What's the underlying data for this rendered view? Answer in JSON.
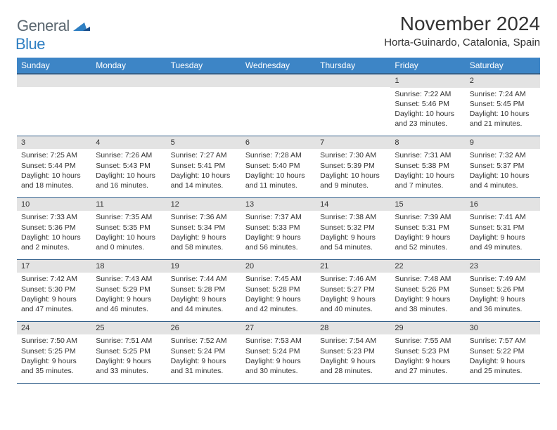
{
  "logo": {
    "general": "General",
    "blue": "Blue"
  },
  "title": {
    "month": "November 2024",
    "location": "Horta-Guinardo, Catalonia, Spain"
  },
  "theme": {
    "header_bg": "#3d85c6",
    "header_border": "#325f8a",
    "daynum_bg": "#e3e3e3",
    "logo_gray": "#5b6770",
    "logo_blue": "#2f7fc2",
    "text": "#333333"
  },
  "weekdays": [
    "Sunday",
    "Monday",
    "Tuesday",
    "Wednesday",
    "Thursday",
    "Friday",
    "Saturday"
  ],
  "weeks": [
    [
      null,
      null,
      null,
      null,
      null,
      {
        "n": "1",
        "sr": "7:22 AM",
        "ss": "5:46 PM",
        "dl": "10 hours and 23 minutes."
      },
      {
        "n": "2",
        "sr": "7:24 AM",
        "ss": "5:45 PM",
        "dl": "10 hours and 21 minutes."
      }
    ],
    [
      {
        "n": "3",
        "sr": "7:25 AM",
        "ss": "5:44 PM",
        "dl": "10 hours and 18 minutes."
      },
      {
        "n": "4",
        "sr": "7:26 AM",
        "ss": "5:43 PM",
        "dl": "10 hours and 16 minutes."
      },
      {
        "n": "5",
        "sr": "7:27 AM",
        "ss": "5:41 PM",
        "dl": "10 hours and 14 minutes."
      },
      {
        "n": "6",
        "sr": "7:28 AM",
        "ss": "5:40 PM",
        "dl": "10 hours and 11 minutes."
      },
      {
        "n": "7",
        "sr": "7:30 AM",
        "ss": "5:39 PM",
        "dl": "10 hours and 9 minutes."
      },
      {
        "n": "8",
        "sr": "7:31 AM",
        "ss": "5:38 PM",
        "dl": "10 hours and 7 minutes."
      },
      {
        "n": "9",
        "sr": "7:32 AM",
        "ss": "5:37 PM",
        "dl": "10 hours and 4 minutes."
      }
    ],
    [
      {
        "n": "10",
        "sr": "7:33 AM",
        "ss": "5:36 PM",
        "dl": "10 hours and 2 minutes."
      },
      {
        "n": "11",
        "sr": "7:35 AM",
        "ss": "5:35 PM",
        "dl": "10 hours and 0 minutes."
      },
      {
        "n": "12",
        "sr": "7:36 AM",
        "ss": "5:34 PM",
        "dl": "9 hours and 58 minutes."
      },
      {
        "n": "13",
        "sr": "7:37 AM",
        "ss": "5:33 PM",
        "dl": "9 hours and 56 minutes."
      },
      {
        "n": "14",
        "sr": "7:38 AM",
        "ss": "5:32 PM",
        "dl": "9 hours and 54 minutes."
      },
      {
        "n": "15",
        "sr": "7:39 AM",
        "ss": "5:31 PM",
        "dl": "9 hours and 52 minutes."
      },
      {
        "n": "16",
        "sr": "7:41 AM",
        "ss": "5:31 PM",
        "dl": "9 hours and 49 minutes."
      }
    ],
    [
      {
        "n": "17",
        "sr": "7:42 AM",
        "ss": "5:30 PM",
        "dl": "9 hours and 47 minutes."
      },
      {
        "n": "18",
        "sr": "7:43 AM",
        "ss": "5:29 PM",
        "dl": "9 hours and 46 minutes."
      },
      {
        "n": "19",
        "sr": "7:44 AM",
        "ss": "5:28 PM",
        "dl": "9 hours and 44 minutes."
      },
      {
        "n": "20",
        "sr": "7:45 AM",
        "ss": "5:28 PM",
        "dl": "9 hours and 42 minutes."
      },
      {
        "n": "21",
        "sr": "7:46 AM",
        "ss": "5:27 PM",
        "dl": "9 hours and 40 minutes."
      },
      {
        "n": "22",
        "sr": "7:48 AM",
        "ss": "5:26 PM",
        "dl": "9 hours and 38 minutes."
      },
      {
        "n": "23",
        "sr": "7:49 AM",
        "ss": "5:26 PM",
        "dl": "9 hours and 36 minutes."
      }
    ],
    [
      {
        "n": "24",
        "sr": "7:50 AM",
        "ss": "5:25 PM",
        "dl": "9 hours and 35 minutes."
      },
      {
        "n": "25",
        "sr": "7:51 AM",
        "ss": "5:25 PM",
        "dl": "9 hours and 33 minutes."
      },
      {
        "n": "26",
        "sr": "7:52 AM",
        "ss": "5:24 PM",
        "dl": "9 hours and 31 minutes."
      },
      {
        "n": "27",
        "sr": "7:53 AM",
        "ss": "5:24 PM",
        "dl": "9 hours and 30 minutes."
      },
      {
        "n": "28",
        "sr": "7:54 AM",
        "ss": "5:23 PM",
        "dl": "9 hours and 28 minutes."
      },
      {
        "n": "29",
        "sr": "7:55 AM",
        "ss": "5:23 PM",
        "dl": "9 hours and 27 minutes."
      },
      {
        "n": "30",
        "sr": "7:57 AM",
        "ss": "5:22 PM",
        "dl": "9 hours and 25 minutes."
      }
    ]
  ],
  "labels": {
    "sunrise": "Sunrise:",
    "sunset": "Sunset:",
    "daylight": "Daylight:"
  }
}
